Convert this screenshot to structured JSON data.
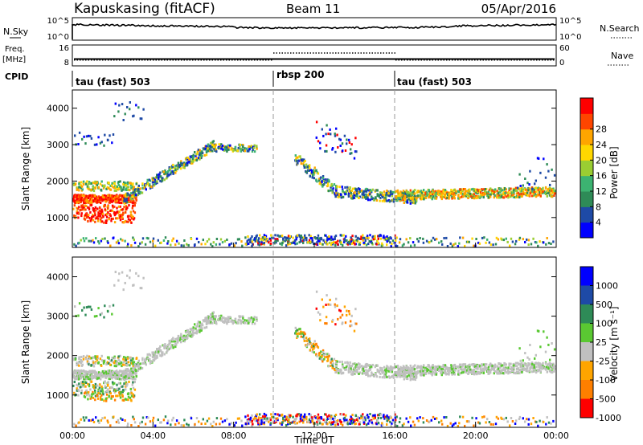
{
  "header": {
    "station": "Kapuskasing (fitACF)",
    "beam": "Beam 11",
    "date": "05/Apr/2016"
  },
  "status_panels": {
    "nsky_label": "N.Sky",
    "nsky_ticks": [
      "10^5",
      "10^0"
    ],
    "nsearch_label": "N.Search",
    "nsearch_ticks": [
      "10^5",
      "10^0"
    ],
    "freq_label": "Freq.",
    "freq_unit": "[MHz]",
    "freq_ticks": [
      "16",
      "8"
    ],
    "nave_label": "Nave",
    "nave_ticks": [
      "60",
      "0"
    ],
    "cpid_label": "CPID"
  },
  "cpid_segments": [
    {
      "label": "tau (fast) 503",
      "start_hour": 0,
      "end_hour": 10
    },
    {
      "label": "rbsp 200",
      "start_hour": 10,
      "end_hour": 16
    },
    {
      "label": "tau (fast) 503",
      "start_hour": 16,
      "end_hour": 24
    }
  ],
  "colors": {
    "power": [
      "#0000ff",
      "#1e4aa6",
      "#2e8b57",
      "#3cb371",
      "#9acd32",
      "#ffd700",
      "#ffa500",
      "#ff4500",
      "#ff0000"
    ],
    "velocity": [
      "#0000ff",
      "#1e4aa6",
      "#2e8b57",
      "#5ac832",
      "#c0c0c0",
      "#ffa500",
      "#ff7f00",
      "#ff0000"
    ]
  },
  "chart_data": [
    {
      "type": "heatmap",
      "name": "power",
      "xlabel": "",
      "ylabel": "Slant Range [km]",
      "xlim": [
        0,
        24
      ],
      "ylim": [
        180,
        4500
      ],
      "yticks": [
        1000,
        2000,
        3000,
        4000
      ],
      "colorbar_label": "Power [dB]",
      "colorbar_ticks": [
        "4",
        "8",
        "12",
        "16",
        "20",
        "24",
        "28"
      ]
    },
    {
      "type": "heatmap",
      "name": "velocity",
      "xlabel": "Time UT",
      "ylabel": "Slant Range [km]",
      "xlim": [
        0,
        24
      ],
      "ylim": [
        180,
        4500
      ],
      "yticks": [
        1000,
        2000,
        3000,
        4000
      ],
      "xtick_labels": [
        "00:00",
        "04:00",
        "08:00",
        "12:00",
        "16:00",
        "20:00",
        "00:00"
      ],
      "colorbar_label": "Velocity [m s⁻¹]",
      "colorbar_ticks": [
        "1000",
        "500",
        "100",
        "25",
        "-25",
        "-100",
        "-500",
        "-1000"
      ]
    }
  ]
}
